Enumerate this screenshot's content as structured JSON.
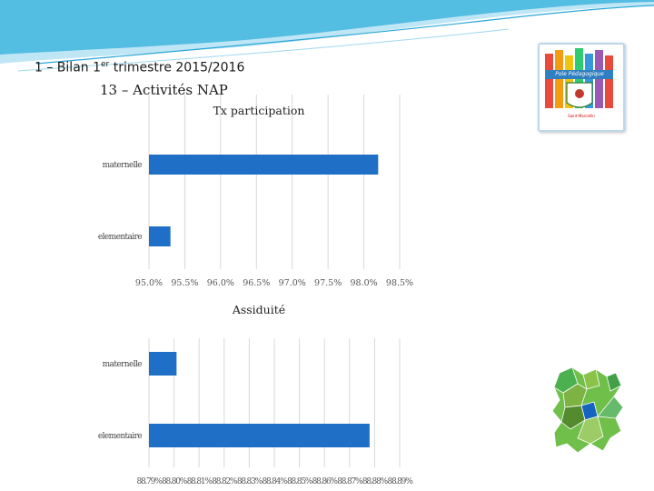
{
  "header": {
    "line1_prefix": "1 – Bilan 1",
    "line1_sup": "er",
    "line1_suffix": " trimestre 2015/2016",
    "line2": "13 – Activités NAP"
  },
  "logo": {
    "banner": "Pole Pédagogique",
    "caption": "Saint-Marcellin"
  },
  "colors": {
    "bar": "#1f6fc6",
    "grid": "#d9d9d9",
    "swoosh": "#2aa7d6"
  },
  "chart_data": [
    {
      "type": "bar",
      "orientation": "horizontal",
      "title": "Tx participation",
      "categories": [
        "maternelle",
        "elementaire"
      ],
      "values": [
        98.2,
        95.3
      ],
      "xlim": [
        95.0,
        98.5
      ],
      "ticks": [
        "95.0%",
        "95.5%",
        "96.0%",
        "96.5%",
        "97.0%",
        "97.5%",
        "98.0%",
        "98.5%"
      ],
      "grid": true
    },
    {
      "type": "bar",
      "orientation": "horizontal",
      "title": "Assiduité",
      "categories": [
        "maternelle",
        "elementaire"
      ],
      "values": [
        88.801,
        88.878
      ],
      "xlim": [
        88.79,
        88.89
      ],
      "ticks": [
        "88.79%",
        "88.80%",
        "88.81%",
        "88.82%",
        "88.83%",
        "88.84%",
        "88.85%",
        "88.86%",
        "88.87%",
        "88.88%",
        "88.89%"
      ],
      "grid": true
    }
  ]
}
